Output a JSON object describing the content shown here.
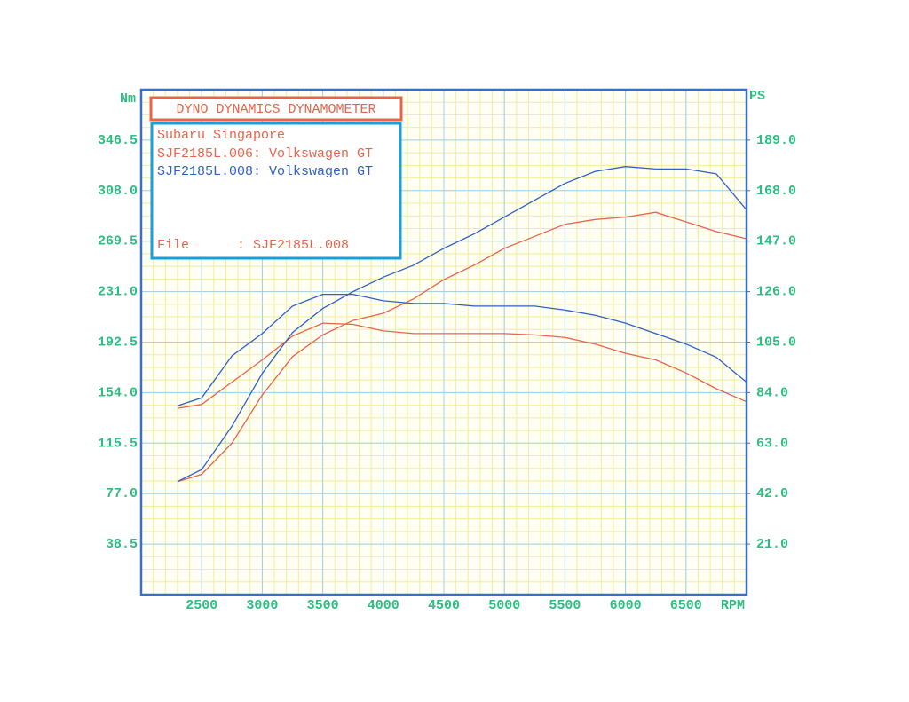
{
  "chart_data": {
    "type": "line",
    "title": "DYNO DYNAMICS DYNAMOMETER",
    "subtitle": "Subaru Singapore",
    "file_label": "File      : SJF2185L.008",
    "y_label": "Nm",
    "y2_label": "PS",
    "x_label": "RPM",
    "xlim": [
      2000,
      7000
    ],
    "xticks": [
      2500,
      3000,
      3500,
      4000,
      4500,
      5000,
      5500,
      6000,
      6500
    ],
    "ylim": [
      0,
      385
    ],
    "yticks": [
      38.5,
      {
        "value": 77,
        "label": "77.0"
      },
      115.5,
      {
        "value": 154,
        "label": "154.0"
      },
      192.5,
      {
        "value": 231,
        "label": "231.0"
      },
      269.5,
      {
        "value": 308,
        "label": "308.0"
      },
      346.5
    ],
    "y2lim": [
      0,
      210
    ],
    "y2ticks": [
      {
        "value": 21,
        "label": "21.0"
      },
      {
        "value": 42,
        "label": "42.0"
      },
      {
        "value": 63,
        "label": "63.0"
      },
      {
        "value": 84,
        "label": "84.0"
      },
      {
        "value": 105,
        "label": "105.0"
      },
      {
        "value": 126,
        "label": "126.0"
      },
      {
        "value": 147,
        "label": "147.0"
      },
      {
        "value": 168,
        "label": "168.0"
      },
      {
        "value": 189,
        "label": "189.0"
      }
    ],
    "grid": true,
    "x": [
      2300,
      2500,
      2750,
      3000,
      3250,
      3500,
      3750,
      4000,
      4250,
      4500,
      4750,
      5000,
      5250,
      5500,
      5750,
      6000,
      6250,
      6500,
      6750,
      7000
    ],
    "series": [
      {
        "name": "SJF2185L.006: Volkswagen GT",
        "color": "#e8644a",
        "values": [
          142,
          145,
          162,
          179,
          197,
          207,
          206,
          201,
          199,
          199,
          199,
          199,
          198,
          196,
          191,
          184,
          179,
          169,
          157,
          147
        ],
        "y2values": [
          47,
          50,
          63,
          83,
          99,
          108,
          114,
          117,
          123,
          131,
          137,
          144,
          149,
          154,
          156,
          157,
          159,
          155,
          151,
          148
        ]
      },
      {
        "name": "SJF2185L.008: Volkswagen GT",
        "color": "#2f5fc8",
        "values": [
          144,
          150,
          182,
          199,
          220,
          229,
          229,
          224,
          222,
          222,
          220,
          220,
          220,
          217,
          213,
          207,
          199,
          191,
          181,
          162
        ],
        "y2values": [
          47,
          52,
          70,
          92,
          109,
          119,
          126,
          132,
          137,
          144,
          150,
          157,
          164,
          171,
          176,
          178,
          177,
          177,
          175,
          160
        ]
      }
    ]
  }
}
